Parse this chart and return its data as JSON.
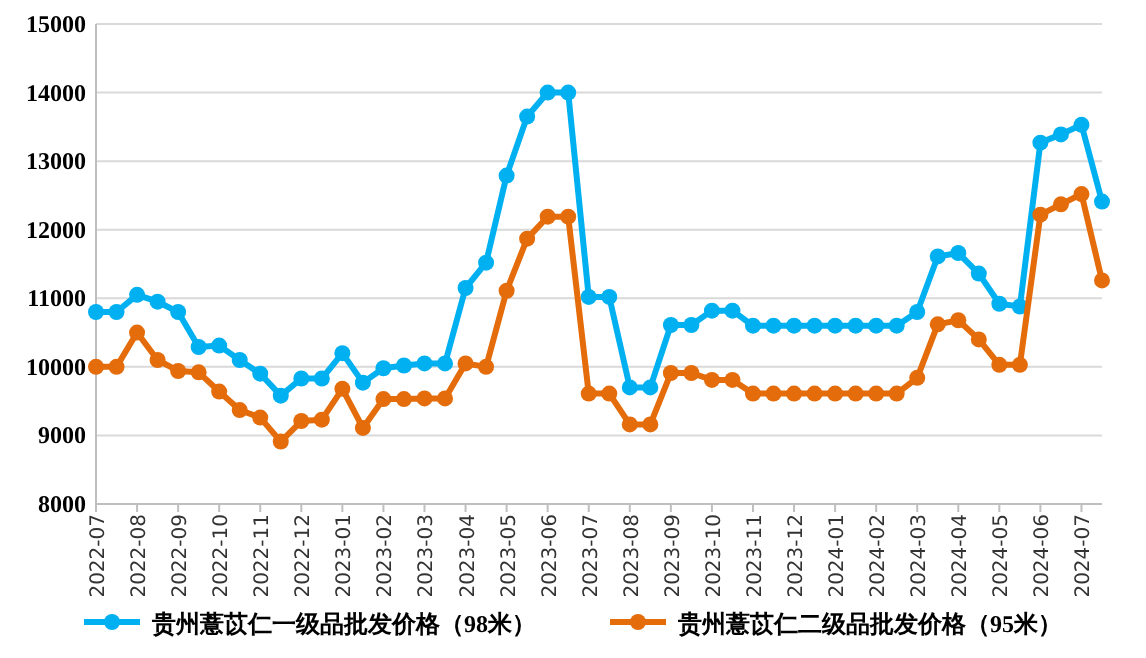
{
  "chart_data": {
    "type": "line",
    "categories": [
      "2022-07",
      null,
      "2022-08",
      null,
      "2022-09",
      null,
      "2022-10",
      null,
      "2022-11",
      null,
      "2022-12",
      null,
      "2023-01",
      null,
      "2023-02",
      null,
      "2023-03",
      null,
      "2023-04",
      null,
      "2023-05",
      null,
      "2023-06",
      null,
      "2023-07",
      null,
      "2023-08",
      null,
      "2023-09",
      null,
      "2023-10",
      null,
      "2023-11",
      null,
      "2023-12",
      null,
      "2024-01",
      null,
      "2024-02",
      null,
      "2024-03",
      null,
      "2024-04",
      null,
      "2024-05",
      null,
      "2024-06",
      null,
      "2024-07",
      null
    ],
    "series": [
      {
        "name": "贵州薏苡仁一级品批发价格（98米）",
        "color": "#00b0f0",
        "values": [
          10800,
          10800,
          11050,
          10950,
          10800,
          10290,
          10310,
          10100,
          9900,
          9580,
          9830,
          9830,
          10200,
          9770,
          9980,
          10020,
          10050,
          10050,
          11150,
          11520,
          12790,
          13650,
          14000,
          14000,
          11020,
          11020,
          9700,
          9700,
          10610,
          10610,
          10820,
          10820,
          10600,
          10600,
          10600,
          10600,
          10600,
          10600,
          10600,
          10600,
          10800,
          11610,
          11660,
          11360,
          10920,
          10880,
          13270,
          13390,
          13530,
          12410
        ]
      },
      {
        "name": "贵州薏苡仁二级品批发价格（95米）",
        "color": "#e46c0a",
        "values": [
          10000,
          10000,
          10500,
          10100,
          9940,
          9920,
          9640,
          9370,
          9260,
          8910,
          9210,
          9230,
          9680,
          9110,
          9530,
          9530,
          9540,
          9540,
          10050,
          10000,
          11110,
          11870,
          12190,
          12190,
          9610,
          9610,
          9160,
          9160,
          9910,
          9910,
          9810,
          9810,
          9610,
          9610,
          9610,
          9610,
          9610,
          9610,
          9610,
          9610,
          9840,
          10620,
          10680,
          10400,
          10030,
          10030,
          12220,
          12370,
          12520,
          11260
        ]
      }
    ],
    "ylim": [
      8000,
      15000
    ],
    "yticks": [
      8000,
      9000,
      10000,
      11000,
      12000,
      13000,
      14000,
      15000
    ],
    "grid": "y",
    "legend": "bottom",
    "marker": "circle",
    "line_style": "solid"
  }
}
